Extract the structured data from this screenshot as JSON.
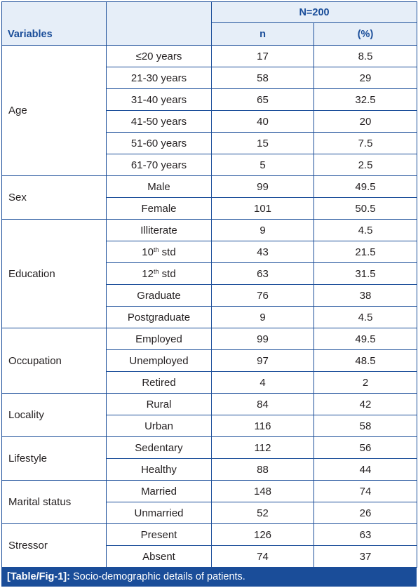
{
  "header": {
    "variables_label": "Variables",
    "total_label": "N=200",
    "n_label": "n",
    "pct_label": "(%)"
  },
  "groups": [
    {
      "name": "Age",
      "rows": [
        {
          "label": "≤20 years",
          "n": "17",
          "pct": "8.5"
        },
        {
          "label": "21-30 years",
          "n": "58",
          "pct": "29"
        },
        {
          "label": "31-40 years",
          "n": "65",
          "pct": "32.5"
        },
        {
          "label": "41-50 years",
          "n": "40",
          "pct": "20"
        },
        {
          "label": "51-60 years",
          "n": "15",
          "pct": "7.5"
        },
        {
          "label": "61-70 years",
          "n": "5",
          "pct": "2.5"
        }
      ]
    },
    {
      "name": "Sex",
      "rows": [
        {
          "label": "Male",
          "n": "99",
          "pct": "49.5"
        },
        {
          "label": "Female",
          "n": "101",
          "pct": "50.5"
        }
      ]
    },
    {
      "name": "Education",
      "rows": [
        {
          "label": "Illiterate",
          "n": "9",
          "pct": "4.5"
        },
        {
          "label": "10",
          "sup": "th",
          "suffix": " std",
          "n": "43",
          "pct": "21.5"
        },
        {
          "label": "12",
          "sup": "th",
          "suffix": " std",
          "n": "63",
          "pct": "31.5"
        },
        {
          "label": "Graduate",
          "n": "76",
          "pct": "38"
        },
        {
          "label": "Postgraduate",
          "n": "9",
          "pct": "4.5"
        }
      ]
    },
    {
      "name": "Occupation",
      "rows": [
        {
          "label": "Employed",
          "n": "99",
          "pct": "49.5"
        },
        {
          "label": "Unemployed",
          "n": "97",
          "pct": "48.5"
        },
        {
          "label": "Retired",
          "n": "4",
          "pct": "2"
        }
      ]
    },
    {
      "name": "Locality",
      "rows": [
        {
          "label": "Rural",
          "n": "84",
          "pct": "42"
        },
        {
          "label": "Urban",
          "n": "116",
          "pct": "58"
        }
      ]
    },
    {
      "name": "Lifestyle",
      "rows": [
        {
          "label": "Sedentary",
          "n": "112",
          "pct": "56"
        },
        {
          "label": "Healthy",
          "n": "88",
          "pct": "44"
        }
      ]
    },
    {
      "name": "Marital status",
      "rows": [
        {
          "label": "Married",
          "n": "148",
          "pct": "74"
        },
        {
          "label": "Unmarried",
          "n": "52",
          "pct": "26"
        }
      ]
    },
    {
      "name": "Stressor",
      "rows": [
        {
          "label": "Present",
          "n": "126",
          "pct": "63"
        },
        {
          "label": "Absent",
          "n": "74",
          "pct": "37"
        }
      ]
    }
  ],
  "caption": {
    "tag": "[Table/Fig-1]:",
    "text": " Socio-demographic details of patients."
  }
}
